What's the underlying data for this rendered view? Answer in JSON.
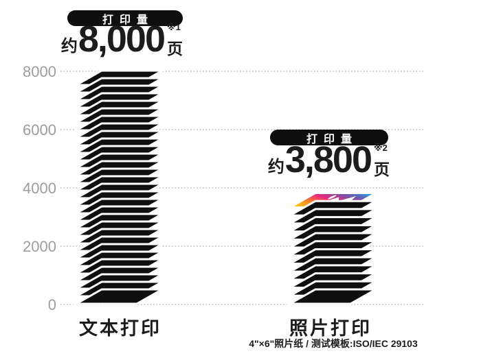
{
  "chart_data": {
    "type": "bar",
    "style": "isometric-paper-stacks",
    "categories": [
      "文本打印",
      "照片打印"
    ],
    "values": [
      8000,
      3800
    ],
    "sheet_counts": [
      30,
      13
    ],
    "top_sheet_style": [
      "plain-black",
      "photo-gradient"
    ],
    "yticks": [
      8000,
      6000,
      4000,
      2000,
      0
    ],
    "ylim": [
      0,
      8000
    ],
    "grid": true,
    "legend": "none",
    "value_labels": [
      {
        "badge": "打印量",
        "prefix": "约",
        "number": "8,000",
        "unit": "页",
        "ref_mark": "※1"
      },
      {
        "badge": "打印量",
        "prefix": "约",
        "number": "3,800",
        "unit": "页",
        "ref_mark": "※2"
      }
    ],
    "footnote": "4\"×6\"照片纸 / 测试模板:ISO/IEC 29103"
  },
  "colors": {
    "bar_black": "#0f0f0f",
    "sheet_gap": "#ffffff",
    "grid": "#c7c7c7",
    "tick_text": "#9d9d9d",
    "badge_bg": "#0f0f0f",
    "badge_text": "#ffffff",
    "text_dark": "#1c1c1c",
    "photo_gradient": [
      "#ffc10e",
      "#f68b1f",
      "#ee2a7b",
      "#7a4fa5",
      "#2a9ae0"
    ]
  }
}
